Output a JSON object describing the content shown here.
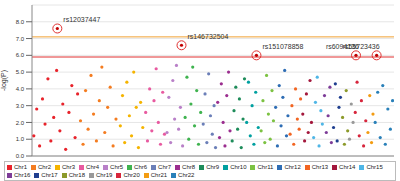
{
  "chart_data": {
    "type": "scatter",
    "y_label": "-log(P)",
    "xlim": [
      0,
      100
    ],
    "ylim": [
      0,
      9
    ],
    "yticks": [
      {
        "value": 0,
        "label": "0.0"
      },
      {
        "value": 1,
        "label": "1.0"
      },
      {
        "value": 2,
        "label": "2.0"
      },
      {
        "value": 3,
        "label": "3.0"
      },
      {
        "value": 4,
        "label": "4.0"
      },
      {
        "value": 5,
        "label": "5.0"
      },
      {
        "value": 6,
        "label": "6.0"
      },
      {
        "value": 7,
        "label": "7.0"
      },
      {
        "value": 8,
        "label": "8.0"
      }
    ],
    "grid": true,
    "tick_labels": "y",
    "legend": "bottom",
    "threshold_lines": [
      {
        "value": 7.1,
        "color": "#f0a030"
      },
      {
        "value": 5.9,
        "color": "#e03030"
      }
    ],
    "annotations": [
      {
        "text": "rs12037447",
        "x": 7.0,
        "y": 7.6
      },
      {
        "text": "rs146732504",
        "x": 41.3,
        "y": 6.6
      },
      {
        "text": "rs151078858",
        "x": 62.0,
        "y": 6.0
      },
      {
        "text": "rs6094136",
        "x": 89.5,
        "y": 6.0
      },
      {
        "text": "rs55723436",
        "x": 95.2,
        "y": 6.0
      }
    ],
    "series": [
      {
        "name": "Chr1",
        "color": "#e8232b",
        "x": [
          0.5,
          1.3,
          2.1,
          2.9,
          3.6,
          4.4,
          5.2,
          6.0,
          6.8,
          7.7,
          8.5,
          9.3,
          10.2,
          11.0,
          11.9,
          12.6
        ],
        "values": [
          1.2,
          2.8,
          0.6,
          3.4,
          1.9,
          4.6,
          0.9,
          2.3,
          5.1,
          1.5,
          3.1,
          0.4,
          2.6,
          4.2,
          1.1,
          3.7
        ]
      },
      {
        "name": "Chr2",
        "color": "#f47c20",
        "x": [
          13.4,
          14.1,
          14.8,
          15.5,
          16.3,
          17.0,
          17.8,
          18.6,
          19.3,
          20.1,
          20.9,
          21.6,
          22.4,
          23.2
        ],
        "values": [
          2.1,
          0.7,
          3.9,
          1.6,
          4.8,
          2.5,
          0.9,
          3.3,
          5.3,
          1.4,
          2.9,
          4.1,
          0.6,
          2.2
        ]
      },
      {
        "name": "Chr3",
        "color": "#f5b400",
        "x": [
          24.4,
          25.0,
          25.6,
          26.2,
          26.9,
          27.5,
          28.1,
          28.8,
          29.4,
          30.0,
          30.6
        ],
        "values": [
          1.8,
          3.6,
          0.8,
          4.4,
          2.4,
          1.2,
          5.0,
          2.9,
          0.5,
          3.2,
          1.7
        ]
      },
      {
        "name": "Chr4",
        "color": "#e85aa0",
        "x": [
          31.4,
          31.9,
          32.5,
          33.1,
          33.7,
          34.3,
          34.9,
          35.5,
          36.1,
          36.6
        ],
        "values": [
          2.6,
          0.9,
          4.0,
          1.5,
          3.3,
          5.2,
          2.0,
          0.7,
          3.8,
          1.3
        ]
      },
      {
        "name": "Chr5",
        "color": "#b980c8",
        "x": [
          37.3,
          37.8,
          38.3,
          38.9,
          39.4,
          39.9,
          40.5,
          41.0,
          41.6
        ],
        "values": [
          1.4,
          3.5,
          0.8,
          4.5,
          2.2,
          5.4,
          1.6,
          2.9,
          0.6
        ]
      },
      {
        "name": "Chr6",
        "color": "#3fb34f",
        "x": [
          42.3,
          42.8,
          43.3,
          43.9,
          44.4,
          44.9,
          45.5,
          46.0,
          46.6
        ],
        "values": [
          2.3,
          4.7,
          1.0,
          3.1,
          5.3,
          1.8,
          3.9,
          0.7,
          2.6
        ]
      },
      {
        "name": "Chr7",
        "color": "#6b7fb8",
        "x": [
          47.3,
          47.8,
          48.3,
          48.8,
          49.3,
          49.8,
          50.3,
          50.7
        ],
        "values": [
          1.9,
          3.7,
          0.8,
          4.9,
          2.4,
          1.3,
          3.0,
          0.5
        ]
      },
      {
        "name": "Chr8",
        "color": "#9b2e8f",
        "x": [
          51.3,
          51.8,
          52.3,
          52.8,
          53.3,
          53.8,
          54.3,
          54.7
        ],
        "values": [
          3.2,
          1.1,
          4.3,
          2.0,
          0.6,
          3.6,
          5.0,
          1.5
        ]
      },
      {
        "name": "Chr9",
        "color": "#1e8c5a",
        "x": [
          55.3,
          55.8,
          56.3,
          56.8,
          57.3,
          57.8,
          58.3,
          58.7
        ],
        "values": [
          0.9,
          2.7,
          4.1,
          1.6,
          3.4,
          0.5,
          2.2,
          4.6
        ]
      },
      {
        "name": "Chr10",
        "color": "#00a0a0",
        "x": [
          59.3,
          59.8,
          60.3,
          60.8,
          61.3,
          61.8,
          62.5
        ],
        "values": [
          2.0,
          4.4,
          1.2,
          3.0,
          0.7,
          3.8,
          1.7
        ]
      },
      {
        "name": "Chr11",
        "color": "#7cc242",
        "x": [
          63.3,
          63.8,
          64.3,
          64.8,
          65.3,
          65.8,
          66.3,
          66.7
        ],
        "values": [
          1.5,
          3.3,
          0.8,
          4.8,
          2.5,
          1.0,
          3.9,
          2.1
        ]
      },
      {
        "name": "Chr12",
        "color": "#2e6db4",
        "x": [
          67.3,
          67.8,
          68.3,
          68.8,
          69.3,
          69.8,
          70.3,
          70.7
        ],
        "values": [
          2.9,
          0.6,
          4.2,
          1.8,
          3.5,
          5.1,
          1.2,
          2.4
        ]
      },
      {
        "name": "Chr13",
        "color": "#f26522",
        "x": [
          71.3,
          71.8,
          72.3,
          72.8,
          73.3,
          73.8,
          74.2
        ],
        "values": [
          1.3,
          3.0,
          0.7,
          4.0,
          2.2,
          1.6,
          3.4
        ]
      },
      {
        "name": "Chr14",
        "color": "#a3173c",
        "x": [
          74.8,
          75.3,
          75.8,
          76.3,
          76.8,
          77.2
        ],
        "values": [
          2.5,
          0.9,
          3.7,
          1.4,
          4.5,
          2.0
        ]
      },
      {
        "name": "Chr15",
        "color": "#4fb6e6",
        "x": [
          77.8,
          78.3,
          78.8,
          79.3,
          79.8,
          80.2
        ],
        "values": [
          1.1,
          3.2,
          4.7,
          0.6,
          2.7,
          1.9
        ]
      },
      {
        "name": "Chr16",
        "color": "#7d3c98",
        "x": [
          80.8,
          81.3,
          81.8,
          82.3,
          82.7
        ],
        "values": [
          3.6,
          1.4,
          2.4,
          4.1,
          0.8
        ]
      },
      {
        "name": "Chr17",
        "color": "#1f3f8f",
        "x": [
          83.3,
          83.8,
          84.3,
          84.8,
          85.2
        ],
        "values": [
          1.7,
          4.3,
          0.9,
          2.9,
          3.5
        ]
      },
      {
        "name": "Chr18",
        "color": "#8c9a2a",
        "x": [
          85.8,
          86.3,
          86.8,
          87.2
        ],
        "values": [
          2.3,
          0.7,
          3.9,
          1.5
        ]
      },
      {
        "name": "Chr19",
        "color": "#999999",
        "x": [
          87.7,
          88.2,
          88.7
        ],
        "values": [
          1.0,
          3.1,
          2.0
        ]
      },
      {
        "name": "Chr20",
        "color": "#d7263d",
        "x": [
          89.3,
          89.8,
          90.4,
          91.0,
          91.6,
          92.2
        ],
        "values": [
          2.6,
          4.4,
          1.2,
          3.3,
          0.6,
          2.1
        ]
      },
      {
        "name": "Chr21",
        "color": "#f39c12",
        "x": [
          92.8,
          93.3,
          93.8,
          94.2
        ],
        "values": [
          1.4,
          3.6,
          0.8,
          2.5
        ]
      },
      {
        "name": "Chr22",
        "color": "#2980b9",
        "x": [
          94.8,
          95.5,
          96.2,
          96.9,
          97.6,
          98.3,
          99.0,
          99.6
        ],
        "values": [
          2.0,
          3.8,
          1.1,
          4.2,
          0.7,
          2.8,
          1.6,
          3.3
        ]
      }
    ]
  }
}
